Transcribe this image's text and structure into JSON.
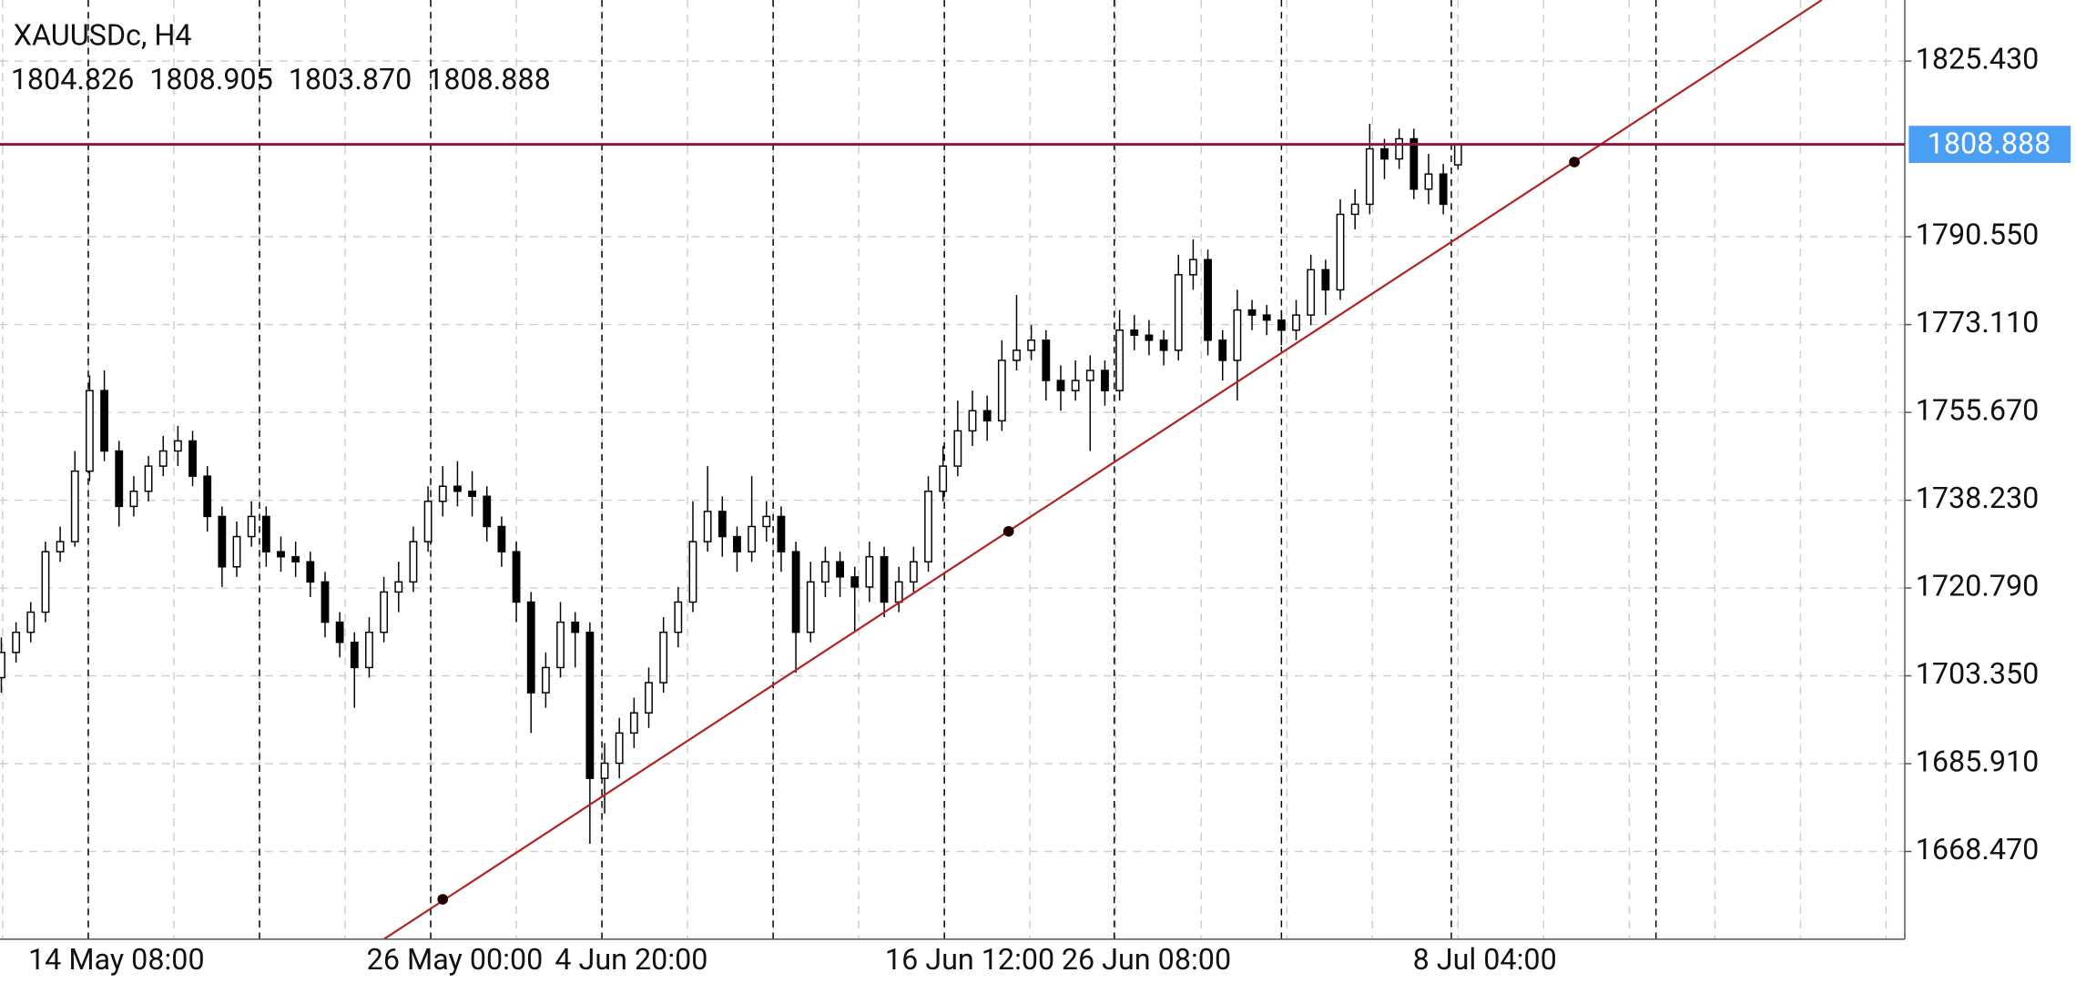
{
  "chart_data": {
    "type": "candlestick",
    "title": "XAUUSDc, H4",
    "last_bar_labels": [
      "1804.826",
      "1808.905",
      "1803.870",
      "1808.888"
    ],
    "ylim": [
      1651.06,
      1837.56
    ],
    "yticks": [
      {
        "value": 1825.43,
        "label": "1825.430"
      },
      {
        "value": 1790.55,
        "label": "1790.550"
      },
      {
        "value": 1773.11,
        "label": "1773.110"
      },
      {
        "value": 1755.67,
        "label": "1755.670"
      },
      {
        "value": 1738.23,
        "label": "1738.230"
      },
      {
        "value": 1720.79,
        "label": "1720.790"
      },
      {
        "value": 1703.35,
        "label": "1703.350"
      },
      {
        "value": 1685.91,
        "label": "1685.910"
      },
      {
        "value": 1668.47,
        "label": "1668.470"
      }
    ],
    "grid": true,
    "up_color": "#ffffff",
    "down_color": "#000000",
    "price_line_color": "#8b1a3a",
    "price_badge_color": "#4a9ff5",
    "categories": [
      null,
      null,
      null,
      null,
      null,
      null,
      "14 May 08:00",
      null,
      null,
      null,
      null,
      null,
      null,
      null,
      null,
      null,
      null,
      null,
      null,
      null,
      null,
      null,
      null,
      null,
      null,
      null,
      null,
      null,
      null,
      "26 May 00:00",
      null,
      null,
      null,
      null,
      null,
      null,
      null,
      null,
      null,
      null,
      null,
      "4 Jun 20:00",
      null,
      null,
      null,
      null,
      null,
      null,
      null,
      null,
      null,
      null,
      null,
      null,
      null,
      null,
      null,
      null,
      null,
      null,
      null,
      null,
      null,
      null,
      "16 Jun 12:00",
      null,
      null,
      null,
      null,
      null,
      null,
      null,
      null,
      null,
      null,
      null,
      "26 Jun 08:00",
      null,
      null,
      null,
      null,
      null,
      null,
      null,
      null,
      null,
      null,
      null,
      null,
      null,
      null,
      null,
      null,
      null,
      null,
      null,
      null,
      null,
      null,
      "8 Jul 04:00"
    ],
    "candles": [
      [
        1703,
        1711,
        1700,
        1708
      ],
      [
        1708,
        1714,
        1706,
        1712
      ],
      [
        1712,
        1718,
        1710,
        1716
      ],
      [
        1716,
        1730,
        1714,
        1728
      ],
      [
        1728,
        1733,
        1726,
        1730
      ],
      [
        1730,
        1748,
        1729,
        1744
      ],
      [
        1744,
        1763,
        1742,
        1760
      ],
      [
        1760,
        1764,
        1746,
        1748
      ],
      [
        1748,
        1750,
        1733,
        1737
      ],
      [
        1737,
        1743,
        1735,
        1740
      ],
      [
        1740,
        1747,
        1738,
        1745
      ],
      [
        1745,
        1751,
        1743,
        1748
      ],
      [
        1748,
        1753,
        1745,
        1750
      ],
      [
        1750,
        1752,
        1741,
        1743
      ],
      [
        1743,
        1745,
        1732,
        1735
      ],
      [
        1735,
        1737,
        1721,
        1725
      ],
      [
        1725,
        1734,
        1723,
        1731
      ],
      [
        1731,
        1738,
        1729,
        1735
      ],
      [
        1735,
        1737,
        1725,
        1728
      ],
      [
        1728,
        1731,
        1724,
        1727
      ],
      [
        1727,
        1730,
        1723,
        1726
      ],
      [
        1726,
        1728,
        1719,
        1722
      ],
      [
        1722,
        1724,
        1711,
        1714
      ],
      [
        1714,
        1716,
        1707,
        1710
      ],
      [
        1710,
        1712,
        1697,
        1705
      ],
      [
        1705,
        1715,
        1703,
        1712
      ],
      [
        1712,
        1723,
        1710,
        1720
      ],
      [
        1720,
        1726,
        1716,
        1722
      ],
      [
        1722,
        1733,
        1720,
        1730
      ],
      [
        1730,
        1741,
        1728,
        1738
      ],
      [
        1738,
        1745,
        1735,
        1741
      ],
      [
        1741,
        1746,
        1737,
        1740
      ],
      [
        1740,
        1744,
        1735,
        1739
      ],
      [
        1739,
        1741,
        1730,
        1733
      ],
      [
        1733,
        1735,
        1725,
        1728
      ],
      [
        1728,
        1730,
        1714,
        1718
      ],
      [
        1718,
        1720,
        1692,
        1700
      ],
      [
        1700,
        1708,
        1697,
        1705
      ],
      [
        1705,
        1718,
        1703,
        1714
      ],
      [
        1714,
        1716,
        1705,
        1712
      ],
      [
        1712,
        1714,
        1670,
        1683
      ],
      [
        1683,
        1690,
        1676,
        1686
      ],
      [
        1686,
        1695,
        1683,
        1692
      ],
      [
        1692,
        1699,
        1689,
        1696
      ],
      [
        1696,
        1705,
        1693,
        1702
      ],
      [
        1702,
        1715,
        1700,
        1712
      ],
      [
        1712,
        1721,
        1709,
        1718
      ],
      [
        1718,
        1738,
        1716,
        1730
      ],
      [
        1730,
        1745,
        1728,
        1736
      ],
      [
        1736,
        1739,
        1727,
        1731
      ],
      [
        1731,
        1733,
        1724,
        1728
      ],
      [
        1728,
        1743,
        1726,
        1733
      ],
      [
        1733,
        1738,
        1730,
        1735
      ],
      [
        1735,
        1737,
        1724,
        1728
      ],
      [
        1728,
        1730,
        1704,
        1712
      ],
      [
        1712,
        1726,
        1710,
        1722
      ],
      [
        1722,
        1729,
        1719,
        1726
      ],
      [
        1726,
        1728,
        1719,
        1723
      ],
      [
        1723,
        1725,
        1712,
        1721
      ],
      [
        1721,
        1730,
        1718,
        1727
      ],
      [
        1727,
        1729,
        1715,
        1718
      ],
      [
        1718,
        1725,
        1716,
        1722
      ],
      [
        1722,
        1729,
        1720,
        1726
      ],
      [
        1726,
        1743,
        1724,
        1740
      ],
      [
        1740,
        1749,
        1738,
        1745
      ],
      [
        1745,
        1758,
        1743,
        1752
      ],
      [
        1752,
        1760,
        1749,
        1756
      ],
      [
        1756,
        1759,
        1750,
        1754
      ],
      [
        1754,
        1770,
        1752,
        1766
      ],
      [
        1766,
        1779,
        1764,
        1768
      ],
      [
        1768,
        1773,
        1766,
        1770
      ],
      [
        1770,
        1772,
        1758,
        1762
      ],
      [
        1762,
        1765,
        1756,
        1760
      ],
      [
        1760,
        1766,
        1758,
        1762
      ],
      [
        1762,
        1767,
        1748,
        1764
      ],
      [
        1764,
        1766,
        1757,
        1760
      ],
      [
        1760,
        1776,
        1758,
        1772
      ],
      [
        1772,
        1775,
        1768,
        1771
      ],
      [
        1771,
        1774,
        1767,
        1770
      ],
      [
        1770,
        1772,
        1765,
        1768
      ],
      [
        1768,
        1787,
        1766,
        1783
      ],
      [
        1783,
        1790,
        1780,
        1786
      ],
      [
        1786,
        1788,
        1767,
        1770
      ],
      [
        1770,
        1772,
        1762,
        1766
      ],
      [
        1766,
        1780,
        1758,
        1776
      ],
      [
        1776,
        1778,
        1772,
        1775
      ],
      [
        1775,
        1777,
        1771,
        1774
      ],
      [
        1774,
        1776,
        1769,
        1772
      ],
      [
        1772,
        1778,
        1770,
        1775
      ],
      [
        1775,
        1787,
        1773,
        1784
      ],
      [
        1784,
        1786,
        1775,
        1780
      ],
      [
        1780,
        1798,
        1778,
        1795
      ],
      [
        1795,
        1800,
        1792,
        1797
      ],
      [
        1797,
        1813,
        1795,
        1808
      ],
      [
        1808,
        1810,
        1802,
        1806
      ],
      [
        1806,
        1812,
        1804,
        1810
      ],
      [
        1810,
        1812,
        1798,
        1800
      ],
      [
        1800,
        1807,
        1797,
        1803
      ],
      [
        1803,
        1805,
        1795,
        1797
      ],
      [
        1804.826,
        1808.905,
        1803.87,
        1808.888
      ]
    ]
  }
}
